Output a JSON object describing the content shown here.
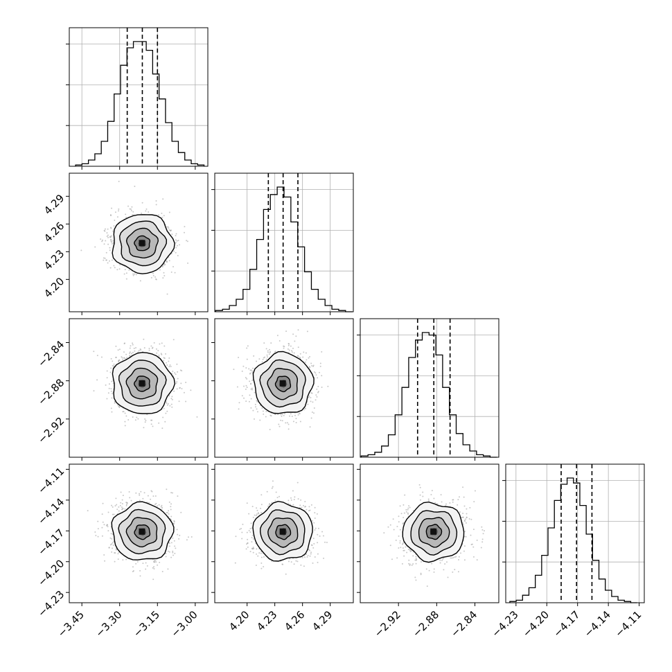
{
  "colors": {
    "axes": "#000000",
    "grid": "#b0b0b0",
    "samples": "#9a9a9a",
    "hist_line": "#000000",
    "quantile_line": "#000000"
  },
  "chart_data": {
    "type": "corner",
    "grid": true,
    "parameters": [
      {
        "range": [
          -3.5,
          -2.95
        ],
        "ticks": [
          -3.45,
          -3.3,
          -3.15,
          -3.0
        ],
        "tick_labels": [
          "−3.45",
          "−3.30",
          "−3.15",
          "−3.00"
        ],
        "mean": -3.21,
        "std": 0.06,
        "quantiles": [
          -3.27,
          -3.21,
          -3.15
        ],
        "histogram": {
          "bin_start": -3.475,
          "bin_width": 0.0255,
          "counts": [
            0.01,
            0.02,
            0.05,
            0.1,
            0.2,
            0.36,
            0.58,
            0.81,
            0.95,
            1.0,
            1.0,
            0.93,
            0.74,
            0.54,
            0.35,
            0.2,
            0.11,
            0.05,
            0.02,
            0.01
          ]
        }
      },
      {
        "range": [
          4.165,
          4.315
        ],
        "ticks": [
          4.2,
          4.23,
          4.26,
          4.29
        ],
        "tick_labels": [
          "4.20",
          "4.23",
          "4.26",
          "4.29"
        ],
        "mean": 4.239,
        "std": 0.016,
        "quantiles": [
          4.223,
          4.239,
          4.255
        ],
        "histogram": {
          "bin_start": 4.166,
          "bin_width": 0.0074,
          "counts": [
            0.01,
            0.02,
            0.05,
            0.1,
            0.18,
            0.34,
            0.58,
            0.82,
            0.94,
            1.0,
            0.92,
            0.72,
            0.52,
            0.32,
            0.18,
            0.1,
            0.05,
            0.02,
            0.01,
            0.0
          ]
        }
      },
      {
        "range": [
          -2.96,
          -2.815
        ],
        "ticks": [
          -2.92,
          -2.88,
          -2.84
        ],
        "tick_labels": [
          "−2.92",
          "−2.88",
          "−2.84"
        ],
        "mean": -2.883,
        "std": 0.016,
        "quantiles": [
          -2.9,
          -2.883,
          -2.866
        ],
        "histogram": {
          "bin_start": -2.959,
          "bin_width": 0.0071,
          "counts": [
            0.01,
            0.02,
            0.04,
            0.09,
            0.18,
            0.34,
            0.56,
            0.8,
            0.94,
            1.0,
            0.98,
            0.82,
            0.56,
            0.34,
            0.19,
            0.1,
            0.05,
            0.02,
            0.01,
            0.0
          ]
        }
      },
      {
        "range": [
          -4.24,
          -4.105
        ],
        "ticks": [
          -4.23,
          -4.2,
          -4.17,
          -4.14,
          -4.11
        ],
        "tick_labels": [
          "−4.23",
          "−4.20",
          "−4.17",
          "−4.14",
          "−4.11"
        ],
        "mean": -4.171,
        "std": 0.014,
        "quantiles": [
          -4.186,
          -4.171,
          -4.156
        ],
        "histogram": {
          "bin_start": -4.236,
          "bin_width": 0.0062,
          "counts": [
            0.01,
            0.02,
            0.06,
            0.12,
            0.22,
            0.38,
            0.6,
            0.82,
            0.95,
            1.0,
            0.96,
            0.78,
            0.55,
            0.34,
            0.19,
            0.1,
            0.05,
            0.02,
            0.01,
            0.0
          ]
        }
      }
    ],
    "contour_levels_sigma": [
      0.5,
      1.0,
      1.5,
      2.0
    ],
    "sample_count": 1200
  }
}
